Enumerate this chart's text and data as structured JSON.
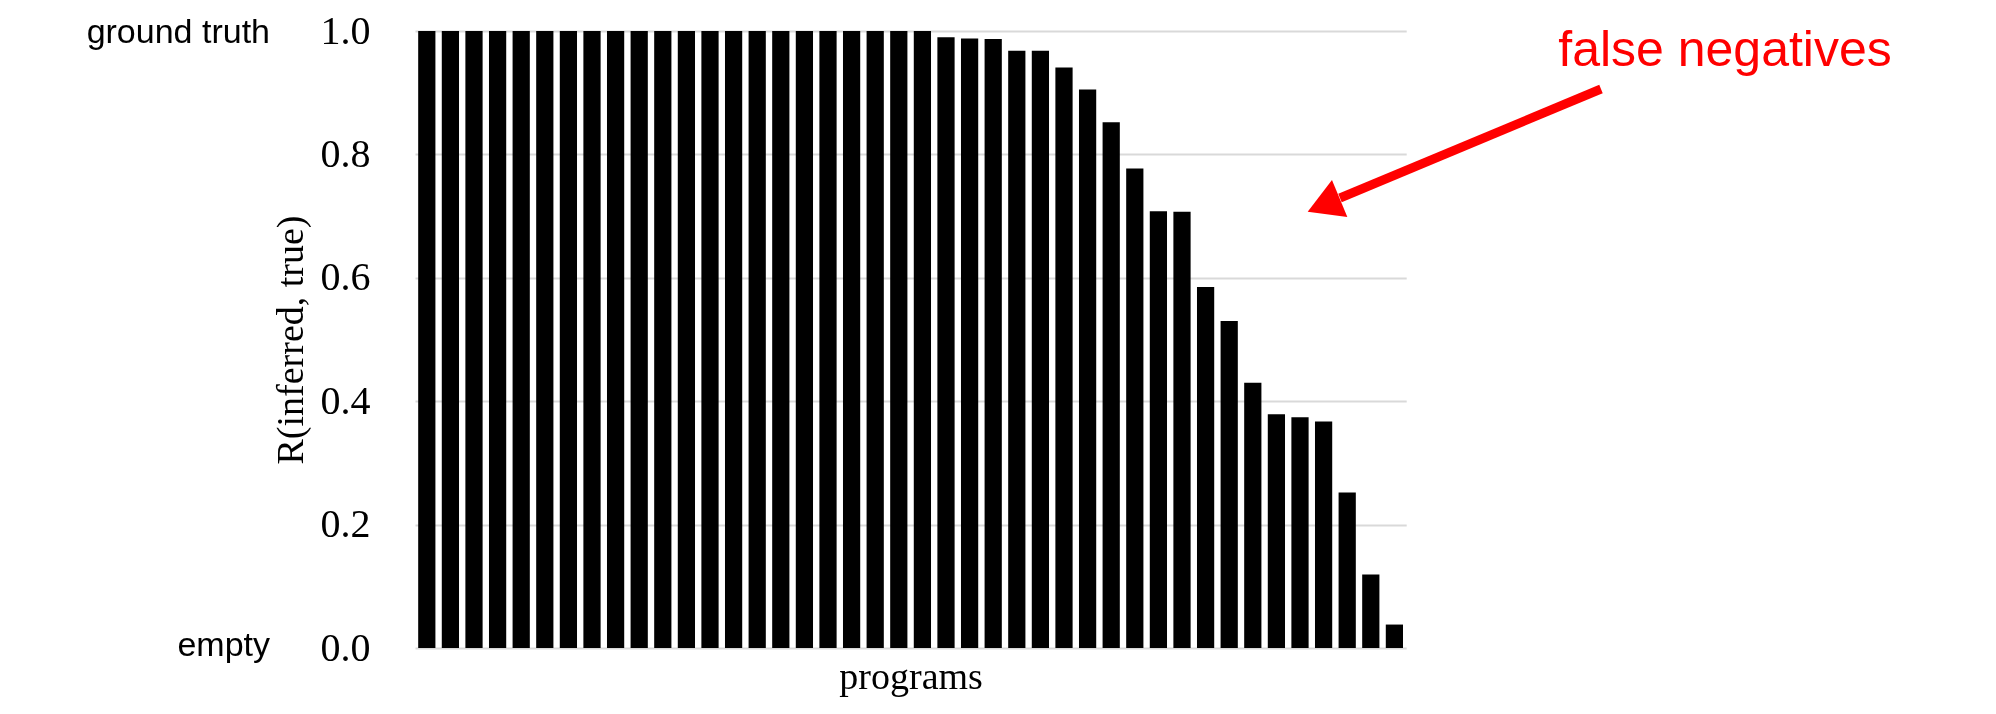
{
  "chart_data": {
    "type": "bar",
    "categories": [
      null,
      null,
      null,
      null,
      null,
      null,
      null,
      null,
      null,
      null,
      null,
      null,
      null,
      null,
      null,
      null,
      null,
      null,
      null,
      null,
      null,
      null,
      null,
      null,
      null,
      null,
      null,
      null,
      null,
      null,
      null,
      null,
      null,
      null,
      null,
      null,
      null,
      null,
      null,
      null,
      null,
      null
    ],
    "values": [
      1,
      1,
      1,
      1,
      1,
      1,
      1,
      1,
      1,
      1,
      1,
      1,
      1,
      1,
      1,
      1,
      1,
      1,
      1,
      1,
      1,
      1,
      0.99,
      0.988,
      0.987,
      0.968,
      0.968,
      0.941,
      0.905,
      0.852,
      0.777,
      0.708,
      0.707,
      0.585,
      0.53,
      0.43,
      0.379,
      0.374,
      0.367,
      0.252,
      0.119,
      0.038
    ],
    "color": "#000000",
    "xlabel": "programs",
    "ylabel": "R(inferred, true)",
    "ylim": [
      0,
      1
    ],
    "yticks": [
      {
        "value": 0,
        "label": "0.0"
      },
      0.2,
      0.4,
      0.6,
      0.8,
      {
        "value": 1,
        "label": "1.0"
      }
    ],
    "grid": "y",
    "annotations": [
      "ground truth",
      "empty",
      "false negatives"
    ]
  }
}
